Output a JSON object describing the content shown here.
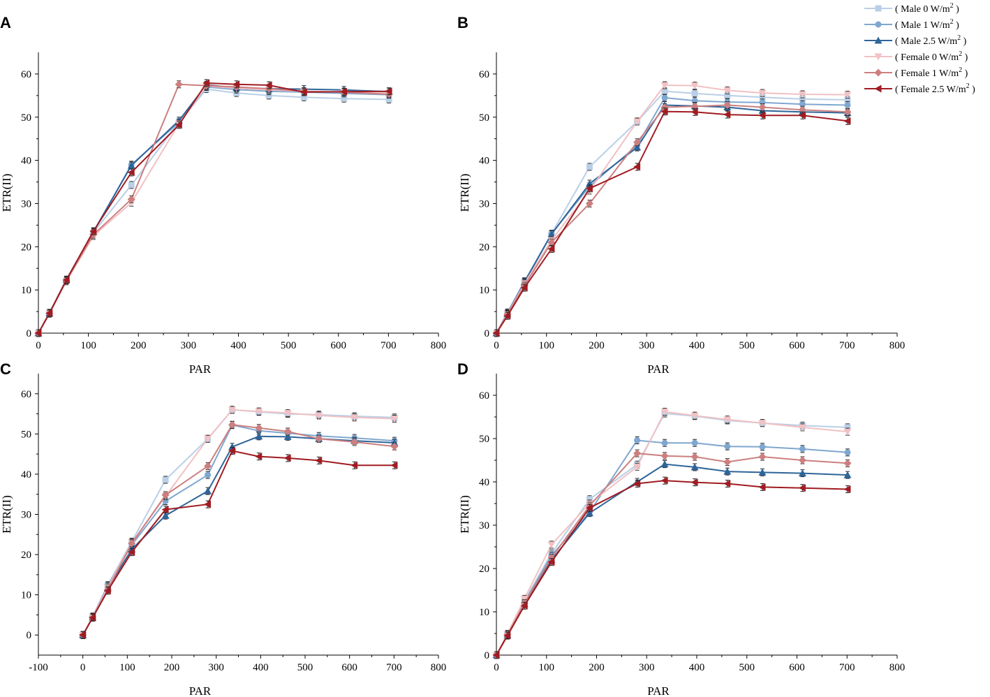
{
  "legend": [
    {
      "key": "m0",
      "label": "( Male 0 W/m",
      "sup": "2",
      "close": " )",
      "color": "#b9cfe6",
      "marker": "square"
    },
    {
      "key": "m1",
      "label": "( Male 1 W/m",
      "sup": "2",
      "close": " )",
      "color": "#7fa7cf",
      "marker": "circle"
    },
    {
      "key": "m25",
      "label": "( Male 2.5 W/m",
      "sup": "2",
      "close": " )",
      "color": "#2e6599",
      "marker": "triangle-up"
    },
    {
      "key": "f0",
      "label": "( Female 0 W/m",
      "sup": "2",
      "close": " )",
      "color": "#f1c1c4",
      "marker": "triangle-down"
    },
    {
      "key": "f1",
      "label": "( Female 1 W/m",
      "sup": "2",
      "close": " )",
      "color": "#cc7f7f",
      "marker": "diamond"
    },
    {
      "key": "f25",
      "label": "( Female 2.5 W/m",
      "sup": "2",
      "close": " )",
      "color": "#a01c22",
      "marker": "triangle-left"
    }
  ],
  "chart_data": [
    {
      "panel": "A",
      "type": "line",
      "xlabel": "PAR",
      "ylabel": "ETR(II)",
      "xlim": [
        0,
        800
      ],
      "ylim": [
        0,
        65
      ],
      "xticks": [
        0,
        100,
        200,
        300,
        400,
        500,
        600,
        700,
        800
      ],
      "yticks": [
        0,
        10,
        20,
        30,
        40,
        50,
        60
      ],
      "x": [
        0,
        22,
        56,
        110,
        186,
        281,
        336,
        396,
        461,
        531,
        611,
        701
      ],
      "series": [
        {
          "key": "m0",
          "values": [
            0,
            4.7,
            12.3,
            23.3,
            34.3,
            48.8,
            56.5,
            55.6,
            55.0,
            54.6,
            54.3,
            54.1
          ]
        },
        {
          "key": "m1",
          "values": [
            0,
            4.7,
            12.3,
            23.3,
            39.0,
            48.8,
            57.0,
            56.4,
            56.0,
            55.8,
            55.5,
            55.2
          ]
        },
        {
          "key": "m25",
          "values": [
            0,
            4.6,
            12.4,
            23.5,
            38.8,
            49.2,
            57.5,
            56.8,
            56.6,
            56.5,
            56.3,
            55.9
          ]
        },
        {
          "key": "f0",
          "values": [
            0,
            4.5,
            12.0,
            22.5,
            30.2,
            48.5,
            57.2,
            56.7,
            56.3,
            56.0,
            55.8,
            55.5
          ]
        },
        {
          "key": "f1",
          "values": [
            0,
            4.6,
            12.2,
            22.8,
            31.0,
            57.6,
            57.3,
            57.0,
            56.6,
            56.0,
            55.8,
            55.3
          ]
        },
        {
          "key": "f25",
          "values": [
            0,
            4.6,
            12.3,
            23.6,
            37.2,
            48.2,
            57.9,
            57.6,
            57.4,
            55.8,
            55.9,
            56.0
          ]
        }
      ]
    },
    {
      "panel": "B",
      "type": "line",
      "xlabel": "PAR",
      "ylabel": "ETR(II)",
      "xlim": [
        0,
        800
      ],
      "ylim": [
        0,
        65
      ],
      "xticks": [
        0,
        100,
        200,
        300,
        400,
        500,
        600,
        700,
        800
      ],
      "yticks": [
        0,
        10,
        20,
        30,
        40,
        50,
        60
      ],
      "x": [
        0,
        22,
        56,
        110,
        186,
        281,
        336,
        396,
        461,
        531,
        611,
        701
      ],
      "series": [
        {
          "key": "m0",
          "values": [
            0,
            4.8,
            12.0,
            23.0,
            38.5,
            49.0,
            56.0,
            55.5,
            55.0,
            54.6,
            54.2,
            54.0
          ]
        },
        {
          "key": "m1",
          "values": [
            0,
            4.6,
            11.9,
            23.0,
            34.0,
            43.5,
            54.5,
            53.8,
            53.5,
            53.4,
            53.0,
            52.8
          ]
        },
        {
          "key": "m25",
          "values": [
            0,
            4.5,
            11.8,
            22.9,
            34.6,
            43.0,
            52.8,
            52.6,
            52.3,
            51.5,
            51.2,
            51.0
          ]
        },
        {
          "key": "f0",
          "values": [
            0,
            4.4,
            11.5,
            21.5,
            33.0,
            49.0,
            57.4,
            57.3,
            56.2,
            55.6,
            55.3,
            55.2
          ]
        },
        {
          "key": "f1",
          "values": [
            0,
            4.3,
            11.0,
            21.0,
            30.0,
            44.2,
            52.3,
            52.5,
            52.8,
            52.3,
            51.7,
            51.2
          ]
        },
        {
          "key": "f25",
          "values": [
            0,
            4.0,
            10.5,
            19.5,
            33.5,
            38.5,
            51.3,
            51.2,
            50.6,
            50.4,
            50.4,
            49.1
          ]
        }
      ]
    },
    {
      "panel": "C",
      "type": "line",
      "xlabel": "PAR",
      "ylabel": "ETR(II)",
      "xlim": [
        -100,
        800
      ],
      "ylim": [
        -5,
        65
      ],
      "xticks": [
        -100,
        0,
        100,
        200,
        300,
        400,
        500,
        600,
        700,
        800
      ],
      "yticks": [
        0,
        10,
        20,
        30,
        40,
        50,
        60
      ],
      "x": [
        0,
        22,
        56,
        110,
        186,
        281,
        336,
        396,
        461,
        531,
        611,
        701
      ],
      "series": [
        {
          "key": "m0",
          "values": [
            0,
            4.6,
            12.4,
            23.2,
            38.6,
            48.8,
            56.0,
            55.5,
            55.0,
            54.8,
            54.4,
            54.1
          ]
        },
        {
          "key": "m1",
          "values": [
            0,
            4.5,
            12.2,
            22.4,
            33.3,
            39.8,
            52.2,
            50.8,
            50.2,
            49.5,
            49.0,
            48.3
          ]
        },
        {
          "key": "m25",
          "values": [
            0,
            4.4,
            11.6,
            21.3,
            29.7,
            35.8,
            46.8,
            49.4,
            49.3,
            48.8,
            48.3,
            47.8
          ]
        },
        {
          "key": "f0",
          "values": [
            0,
            4.5,
            11.8,
            23.0,
            34.5,
            48.8,
            56.0,
            55.6,
            55.2,
            54.6,
            54.1,
            53.8
          ]
        },
        {
          "key": "f1",
          "values": [
            0,
            4.4,
            11.3,
            22.8,
            34.8,
            42.0,
            52.3,
            51.5,
            50.6,
            48.8,
            48.0,
            46.9
          ]
        },
        {
          "key": "f25",
          "values": [
            0,
            4.3,
            11.0,
            20.6,
            31.2,
            32.5,
            45.8,
            44.4,
            44.0,
            43.4,
            42.2,
            42.2
          ]
        }
      ]
    },
    {
      "panel": "D",
      "type": "line",
      "xlabel": "PAR",
      "ylabel": "ETR(II)",
      "xlim": [
        0,
        800
      ],
      "ylim": [
        0,
        65
      ],
      "xticks": [
        0,
        100,
        200,
        300,
        400,
        500,
        600,
        700,
        800
      ],
      "yticks": [
        0,
        10,
        20,
        30,
        40,
        50,
        60
      ],
      "x": [
        0,
        22,
        56,
        110,
        186,
        281,
        336,
        396,
        461,
        531,
        611,
        701
      ],
      "series": [
        {
          "key": "m0",
          "values": [
            0,
            4.8,
            12.5,
            23.5,
            36.0,
            44.0,
            55.8,
            55.2,
            54.2,
            53.6,
            53.0,
            52.6
          ]
        },
        {
          "key": "m1",
          "values": [
            0,
            4.7,
            12.2,
            23.0,
            33.0,
            49.6,
            49.0,
            49.0,
            48.2,
            48.1,
            47.6,
            46.8
          ]
        },
        {
          "key": "m25",
          "values": [
            0,
            4.6,
            11.8,
            22.0,
            32.8,
            40.0,
            44.1,
            43.4,
            42.4,
            42.2,
            42.0,
            41.6
          ]
        },
        {
          "key": "f0",
          "values": [
            0,
            4.9,
            13.0,
            25.5,
            35.0,
            43.5,
            56.2,
            55.3,
            54.4,
            53.6,
            52.6,
            51.6
          ]
        },
        {
          "key": "f1",
          "values": [
            0,
            4.7,
            12.0,
            22.5,
            34.5,
            46.6,
            46.0,
            45.8,
            44.6,
            45.8,
            45.0,
            44.3
          ]
        },
        {
          "key": "f25",
          "values": [
            0,
            4.5,
            11.4,
            21.5,
            34.0,
            39.6,
            40.3,
            39.9,
            39.6,
            38.8,
            38.6,
            38.3
          ]
        }
      ]
    }
  ]
}
